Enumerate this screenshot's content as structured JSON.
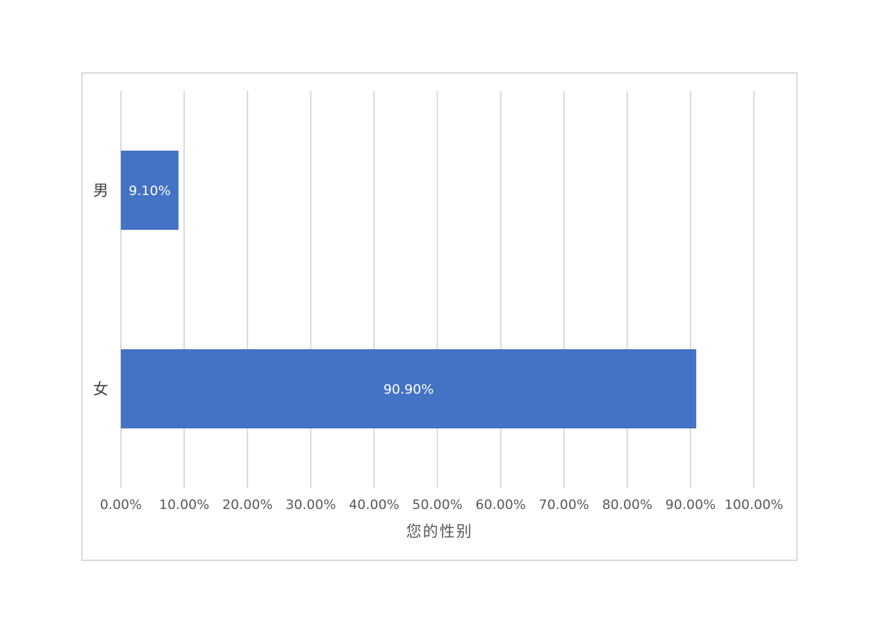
{
  "chart_data": {
    "type": "bar",
    "orientation": "horizontal",
    "categories": [
      "男",
      "女"
    ],
    "values": [
      9.1,
      90.9
    ],
    "data_labels": [
      "9.10%",
      "90.90%"
    ],
    "xlabel": "您的性别",
    "ylabel": "",
    "xlim": [
      0,
      100
    ],
    "x_ticks": [
      0,
      10,
      20,
      30,
      40,
      50,
      60,
      70,
      80,
      90,
      100
    ],
    "x_tick_labels": [
      "0.00%",
      "10.00%",
      "20.00%",
      "30.00%",
      "40.00%",
      "50.00%",
      "60.00%",
      "70.00%",
      "80.00%",
      "90.00%",
      "100.00%"
    ],
    "grid": "vertical",
    "legend": "none",
    "bar_color": "#4472c4",
    "grid_color": "#d9d9d9",
    "label_color": "#ffffff",
    "tick_color": "#595959"
  }
}
